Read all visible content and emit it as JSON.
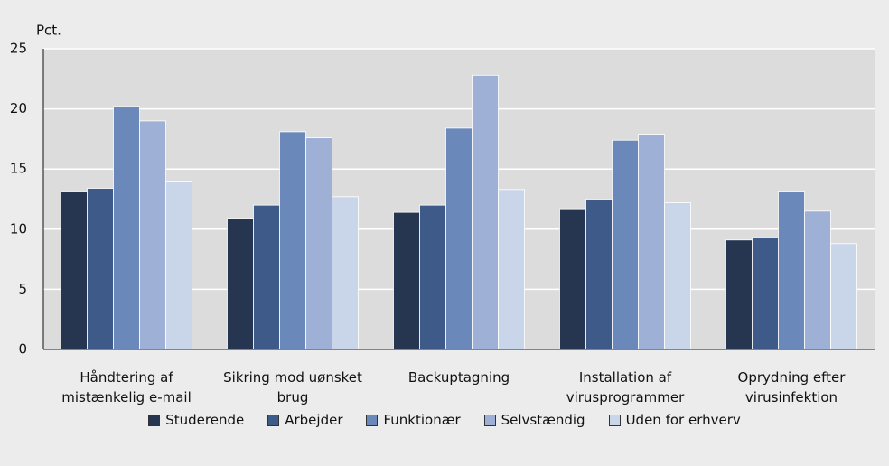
{
  "chart_data": {
    "type": "bar",
    "y_label": "Pct.",
    "categories": [
      "Håndtering af mistænkelig e-mail",
      "Sikring mod uønsket brug",
      "Backuptagning",
      "Installation af virusprogrammer",
      "Oprydning efter virusinfektion"
    ],
    "series": [
      {
        "name": "Studerende",
        "color": "#263550",
        "values": [
          13.1,
          10.9,
          11.4,
          11.7,
          9.1
        ]
      },
      {
        "name": "Arbejder",
        "color": "#3e5a88",
        "values": [
          13.4,
          12.0,
          12.0,
          12.5,
          9.3
        ]
      },
      {
        "name": "Funktionær",
        "color": "#6b88bb",
        "values": [
          20.2,
          18.1,
          18.4,
          17.4,
          13.1
        ]
      },
      {
        "name": "Selvstændig",
        "color": "#9eb0d5",
        "values": [
          19.0,
          17.6,
          22.8,
          17.9,
          11.5
        ]
      },
      {
        "name": "Uden for erhverv",
        "color": "#c9d6ea",
        "values": [
          14.0,
          12.7,
          13.3,
          12.2,
          8.8
        ]
      }
    ],
    "ylim": [
      0,
      25
    ],
    "yticks": [
      0,
      5,
      10,
      15,
      20,
      25
    ],
    "grid": true
  }
}
